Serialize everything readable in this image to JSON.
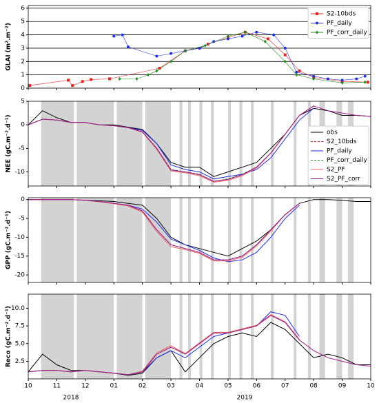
{
  "chart_data": [
    {
      "type": "line",
      "ylabel": "GLAI (m².m⁻²)",
      "xlim": [
        0,
        12
      ],
      "ylim": [
        0,
        6.2
      ],
      "yticks": [
        0,
        1,
        2,
        3,
        4,
        5,
        6
      ],
      "grid": true,
      "legend": "upper right",
      "series": [
        {
          "name": "S2-10bds",
          "color": "#e8231f",
          "marker": "square",
          "x": [
            0.05,
            1.4,
            1.55,
            1.9,
            2.2,
            2.85,
            4.6,
            5.5,
            6.0,
            6.3,
            7.0,
            7.6,
            8.4,
            9.0,
            9.5,
            10.0,
            11.0,
            11.9
          ],
          "values": [
            0.2,
            0.6,
            0.2,
            0.5,
            0.65,
            0.7,
            1.5,
            2.8,
            3.0,
            3.3,
            3.8,
            4.2,
            3.7,
            2.5,
            1.3,
            0.8,
            0.5,
            0.45
          ]
        },
        {
          "name": "PF_daily",
          "color": "#1f2fe8",
          "marker": "circle",
          "x": [
            3.0,
            3.3,
            3.5,
            4.5,
            5.0,
            5.5,
            6.0,
            6.5,
            7.0,
            7.5,
            8.0,
            8.6,
            9.0,
            9.4,
            10.0,
            10.5,
            11.0,
            11.5,
            11.8
          ],
          "values": [
            3.9,
            4.0,
            3.1,
            2.4,
            2.6,
            2.8,
            3.0,
            3.5,
            3.7,
            3.9,
            4.2,
            4.0,
            3.0,
            1.2,
            0.9,
            0.7,
            0.6,
            0.7,
            0.9
          ]
        },
        {
          "name": "PF_corr_daily",
          "color": "#1a8a1a",
          "marker": "diamond",
          "x": [
            3.2,
            3.8,
            4.2,
            4.5,
            5.0,
            5.5,
            6.2,
            7.0,
            7.6,
            8.3,
            9.0,
            9.4,
            10.0,
            11.0,
            11.8
          ],
          "values": [
            0.7,
            0.7,
            1.0,
            1.3,
            2.0,
            2.8,
            3.2,
            3.9,
            4.2,
            3.5,
            2.0,
            1.0,
            0.7,
            0.4,
            0.45
          ]
        }
      ]
    },
    {
      "type": "line",
      "ylabel": "NEE (gC.m⁻².d⁻¹)",
      "xlim": [
        0,
        12
      ],
      "ylim": [
        -13,
        5
      ],
      "yticks": [
        -10,
        -5,
        0,
        5
      ],
      "legend": "lower right",
      "shaded_periods": [
        [
          0.45,
          1.6
        ],
        [
          1.7,
          3.0
        ],
        [
          3.1,
          4.0
        ],
        [
          4.1,
          5.0
        ],
        [
          5.3,
          5.4
        ],
        [
          5.6,
          5.7
        ],
        [
          6.0,
          6.1
        ],
        [
          6.4,
          6.5
        ],
        [
          7.0,
          7.1
        ],
        [
          7.4,
          7.5
        ],
        [
          7.8,
          7.9
        ],
        [
          8.5,
          8.6
        ],
        [
          9.3,
          9.4
        ],
        [
          9.8,
          9.9
        ],
        [
          10.2,
          10.4
        ],
        [
          10.8,
          11.0
        ],
        [
          11.2,
          11.4
        ]
      ],
      "x": [
        0,
        0.5,
        1,
        1.5,
        2,
        2.5,
        3,
        3.5,
        4,
        4.5,
        5,
        5.5,
        6,
        6.5,
        7,
        7.5,
        8,
        8.5,
        9,
        9.5,
        10,
        10.5,
        11,
        11.5,
        12
      ],
      "series": [
        {
          "name": "obs",
          "color": "#000000",
          "dash": "none",
          "values": [
            0,
            3,
            1.5,
            0.5,
            0.5,
            0,
            0,
            -0.5,
            -1,
            -4,
            -8,
            -9,
            -9,
            -11,
            -10,
            -9,
            -8,
            -5,
            -2,
            2,
            3.5,
            3,
            2,
            2,
            1.8
          ]
        },
        {
          "name": "S2_10bds",
          "color": "#e8231f",
          "dash": "3,2",
          "values": [
            0,
            1.2,
            1,
            0.5,
            0.5,
            0,
            -0.2,
            -0.6,
            -1.5,
            -5,
            -9.5,
            -10,
            -10.5,
            -12,
            -11.5,
            -10.5,
            -9,
            -6,
            -2,
            2,
            4,
            null,
            null,
            null,
            null
          ]
        },
        {
          "name": "PF_daily",
          "color": "#1f2fe8",
          "dash": "none",
          "values": [
            0,
            1.2,
            1,
            0.5,
            0.5,
            0,
            -0.2,
            -0.6,
            -1.2,
            -4,
            -8.5,
            -9.5,
            -10,
            -11.5,
            -11,
            -10.5,
            -9.5,
            -7,
            -3,
            1,
            3.5,
            null,
            null,
            null,
            null
          ]
        },
        {
          "name": "PF_corr_daily",
          "color": "#1a8a1a",
          "dash": "3,2",
          "values": [
            0,
            1.2,
            1,
            0.5,
            0.5,
            0,
            -0.2,
            -0.6,
            -1.5,
            -5,
            -9.5,
            -10,
            -10.5,
            -12,
            -11.5,
            -10.5,
            -9,
            -6,
            -2,
            2,
            4,
            null,
            null,
            null,
            null
          ]
        },
        {
          "name": "S2_PF",
          "color": "#f06060",
          "dash": "none",
          "values": [
            0,
            1.2,
            1,
            0.5,
            0.5,
            0,
            -0.2,
            -0.6,
            -1.6,
            -5.2,
            -9.8,
            -10.2,
            -10.8,
            -12.2,
            -11.8,
            -10.8,
            -9.2,
            -6,
            -2,
            2,
            4,
            null,
            null,
            null,
            null
          ]
        },
        {
          "name": "S2_PF_corr",
          "color": "#a01890",
          "dash": "none",
          "values": [
            0,
            1.2,
            1,
            0.5,
            0.5,
            0,
            -0.2,
            -0.6,
            -1.5,
            -5,
            -9.6,
            -10,
            -10.6,
            -12,
            -11.6,
            -10.6,
            -9,
            -6,
            -2,
            2,
            4,
            3,
            2.5,
            2,
            1.8
          ]
        }
      ]
    },
    {
      "type": "line",
      "ylabel": "GPP (gC.m⁻².d⁻¹)",
      "xlim": [
        0,
        12
      ],
      "ylim": [
        -22,
        0.5
      ],
      "yticks": [
        -20,
        -15,
        -10,
        -5,
        0
      ],
      "x": [
        0,
        0.5,
        1,
        1.5,
        2,
        2.5,
        3,
        3.5,
        4,
        4.5,
        5,
        5.5,
        6,
        6.5,
        7,
        7.5,
        8,
        8.5,
        9,
        9.5,
        10,
        10.5,
        11,
        11.5,
        12
      ],
      "series": [
        {
          "name": "obs",
          "color": "#000000",
          "dash": "none",
          "values": [
            0,
            0,
            0,
            0,
            -0.2,
            -0.3,
            -0.5,
            -1,
            -1.5,
            -5,
            -10,
            -12,
            -13,
            -14,
            -15,
            -13,
            -11,
            -8,
            -4,
            -1,
            0,
            0,
            -0.2,
            -0.5,
            -0.5
          ]
        },
        {
          "name": "S2_10bds",
          "color": "#e8231f",
          "dash": "3,2",
          "values": [
            0,
            0,
            0,
            0,
            -0.2,
            -0.5,
            -1,
            -1.5,
            -3,
            -8,
            -12,
            -13,
            -14,
            -16,
            -16,
            -15,
            -12,
            -8,
            -4,
            -1,
            null,
            null,
            null,
            null,
            null
          ]
        },
        {
          "name": "PF_daily",
          "color": "#1f2fe8",
          "dash": "none",
          "values": [
            0,
            0,
            0,
            0,
            -0.2,
            -0.5,
            -1,
            -1.5,
            -2.5,
            -6,
            -10.5,
            -12,
            -13.5,
            -15.5,
            -16.5,
            -16,
            -14,
            -10,
            -5,
            -1.5,
            null,
            null,
            null,
            null,
            null
          ]
        },
        {
          "name": "PF_corr_daily",
          "color": "#1a8a1a",
          "dash": "3,2",
          "values": [
            0,
            0,
            0,
            0,
            -0.2,
            -0.5,
            -1,
            -1.5,
            -3,
            -8,
            -12,
            -13,
            -14,
            -16,
            -16,
            -15,
            -12,
            -8,
            -4,
            -1,
            null,
            null,
            null,
            null,
            null
          ]
        },
        {
          "name": "S2_PF",
          "color": "#f06060",
          "dash": "none",
          "values": [
            0,
            0,
            0,
            0,
            -0.2,
            -0.6,
            -1.1,
            -1.7,
            -3.3,
            -8.5,
            -12.5,
            -13.3,
            -14.3,
            -16.3,
            -16.3,
            -15.3,
            -12.3,
            -8.3,
            -4,
            -1,
            null,
            null,
            null,
            null,
            null
          ]
        },
        {
          "name": "S2_PF_corr",
          "color": "#a01890",
          "dash": "none",
          "values": [
            0,
            0,
            0,
            0,
            -0.2,
            -0.5,
            -1,
            -1.5,
            -3,
            -8,
            -12,
            -13,
            -14,
            -16,
            -16,
            -15,
            -12,
            -8,
            -4,
            -1,
            null,
            null,
            null,
            null,
            null
          ]
        }
      ]
    },
    {
      "type": "line",
      "ylabel": "Reco (gC.m⁻².d⁻¹)",
      "xlim": [
        0,
        12
      ],
      "ylim": [
        0,
        12
      ],
      "yticks": [
        2.5,
        {
          "value": 5,
          "label": "5.0"
        },
        7.5,
        {
          "value": 10,
          "label": "10.0"
        }
      ],
      "xticks": [
        {
          "value": 0,
          "label": "10"
        },
        {
          "value": 1,
          "label": "11"
        },
        {
          "value": 2,
          "label": "12"
        },
        {
          "value": 3,
          "label": "01"
        },
        {
          "value": 4,
          "label": "02"
        },
        {
          "value": 5,
          "label": "03"
        },
        {
          "value": 6,
          "label": "04"
        },
        {
          "value": 7,
          "label": "05"
        },
        {
          "value": 8,
          "label": "06"
        },
        {
          "value": 9,
          "label": "07"
        },
        {
          "value": 10,
          "label": "08"
        },
        {
          "value": 11,
          "label": "09"
        },
        {
          "value": 12,
          "label": "10"
        }
      ],
      "annotations": [
        "2018",
        "2019"
      ],
      "x": [
        0,
        0.5,
        1,
        1.5,
        2,
        2.5,
        3,
        3.5,
        4,
        4.5,
        5,
        5.5,
        6,
        6.5,
        7,
        7.5,
        8,
        8.5,
        9,
        9.5,
        10,
        10.5,
        11,
        11.5,
        12
      ],
      "series": [
        {
          "name": "obs",
          "color": "#000000",
          "dash": "none",
          "values": [
            1,
            3.5,
            2,
            1.2,
            1.2,
            1,
            0.8,
            0.5,
            0.8,
            3,
            4,
            1,
            3,
            5,
            6,
            6.5,
            6,
            8,
            7,
            5,
            3,
            3.5,
            3,
            2,
            2
          ]
        },
        {
          "name": "S2_10bds",
          "color": "#e8231f",
          "dash": "3,2",
          "values": [
            1,
            1.2,
            1.2,
            1,
            1.2,
            1,
            0.8,
            0.6,
            1,
            3.5,
            4.5,
            3.5,
            5,
            6.5,
            6.5,
            7,
            7.5,
            9,
            8,
            5.5,
            null,
            null,
            null,
            null,
            null
          ]
        },
        {
          "name": "PF_daily",
          "color": "#1f2fe8",
          "dash": "none",
          "values": [
            1,
            1.2,
            1.2,
            1,
            1.2,
            1,
            0.8,
            0.6,
            1,
            3,
            4,
            3,
            4.5,
            6,
            6.5,
            7,
            7.5,
            9.5,
            9,
            6,
            null,
            null,
            null,
            null,
            null
          ]
        },
        {
          "name": "PF_corr_daily",
          "color": "#1a8a1a",
          "dash": "3,2",
          "values": [
            1,
            1.2,
            1.2,
            1,
            1.2,
            1,
            0.8,
            0.6,
            1,
            3.5,
            4.5,
            3.5,
            5,
            6.5,
            6.5,
            7,
            7.5,
            9,
            8,
            5.5,
            null,
            null,
            null,
            null,
            null
          ]
        },
        {
          "name": "S2_PF",
          "color": "#f06060",
          "dash": "none",
          "values": [
            1,
            1.2,
            1.2,
            1,
            1.2,
            1,
            0.8,
            0.6,
            1.1,
            3.7,
            4.7,
            3.6,
            5.1,
            6.6,
            6.6,
            7.1,
            7.6,
            9.1,
            8.1,
            5.6,
            null,
            null,
            null,
            null,
            null
          ]
        },
        {
          "name": "S2_PF_corr",
          "color": "#a01890",
          "dash": "none",
          "values": [
            1,
            1.2,
            1.2,
            1,
            1.2,
            1,
            0.8,
            0.6,
            1,
            3.5,
            4.5,
            3.5,
            5,
            6.5,
            6.5,
            7,
            7.5,
            9,
            8,
            5.5,
            4,
            3,
            2.5,
            2,
            1.8
          ]
        }
      ]
    }
  ]
}
